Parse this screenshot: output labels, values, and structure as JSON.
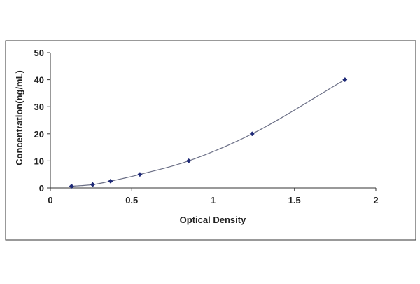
{
  "chart_data": {
    "type": "scatter",
    "title": "",
    "xlabel": "Optical Density",
    "ylabel": "Concentration(ng/mL)",
    "xlim": [
      0,
      2
    ],
    "ylim": [
      0,
      50
    ],
    "xticks": [
      0,
      0.5,
      1,
      1.5,
      2
    ],
    "yticks": [
      0,
      10,
      20,
      30,
      40,
      50
    ],
    "xtick_labels": [
      "0",
      "0.5",
      "1",
      "1.5",
      "2"
    ],
    "ytick_labels": [
      "0",
      "10",
      "20",
      "30",
      "40",
      "50"
    ],
    "grid": false,
    "legend": "none",
    "fit_curve": true,
    "series": [
      {
        "x": [
          0.13,
          0.26,
          0.37,
          0.55,
          0.85,
          1.24,
          1.81
        ],
        "y": [
          0.625,
          1.25,
          2.5,
          5,
          10,
          20,
          40
        ]
      }
    ],
    "colors": {
      "marker": "#1f2a78",
      "curve": "#6b6f86",
      "axis": "#333333",
      "frame": "#333333"
    }
  }
}
